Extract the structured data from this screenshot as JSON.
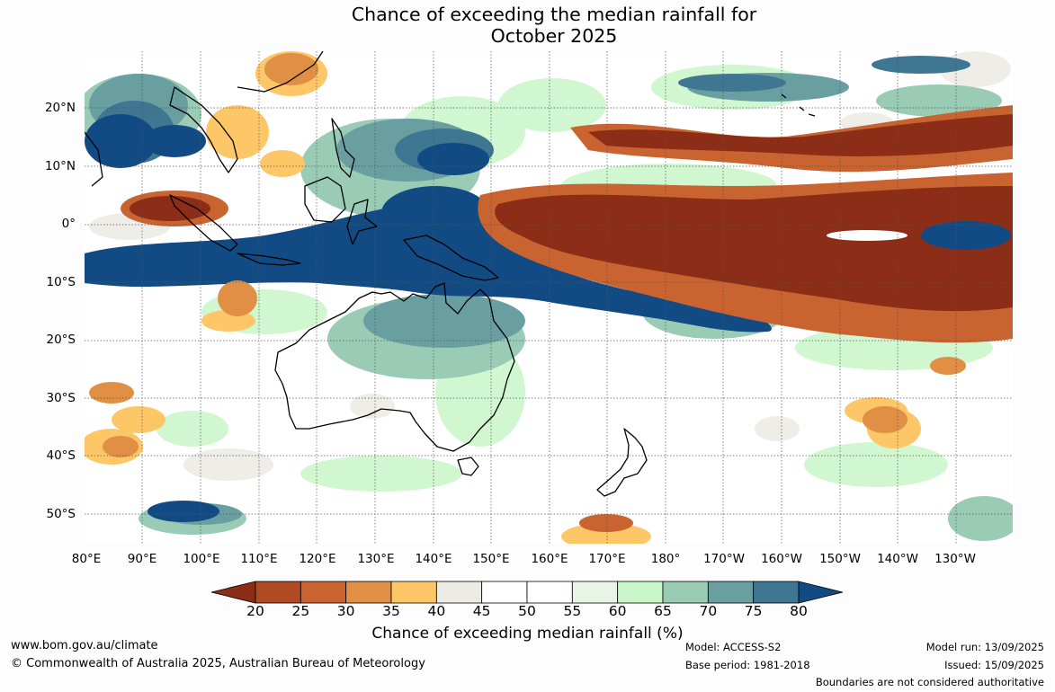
{
  "title_line1": "Chance of exceeding the median rainfall for",
  "title_line2": "October 2025",
  "lat_labels": [
    "20°N",
    "10°N",
    "0°",
    "10°S",
    "20°S",
    "30°S",
    "40°S",
    "50°S"
  ],
  "lon_labels": [
    "80°E",
    "90°E",
    "100°E",
    "110°E",
    "120°E",
    "130°E",
    "140°E",
    "150°E",
    "160°E",
    "170°E",
    "180°",
    "170°W",
    "160°W",
    "150°W",
    "140°W",
    "130°W"
  ],
  "colorbar": {
    "ticks": [
      "20",
      "25",
      "30",
      "35",
      "40",
      "45",
      "50",
      "55",
      "60",
      "65",
      "70",
      "75",
      "80"
    ],
    "colors": [
      "#8c2d18",
      "#b04a22",
      "#c9632f",
      "#e08f45",
      "#fdc768",
      "#ecebe4",
      "#ffffff",
      "#ffffff",
      "#e8f5e6",
      "#c8f6c8",
      "#99cbb5",
      "#6a9fa1",
      "#3f7692",
      "#124a84"
    ],
    "title": "Chance of exceeding median rainfall (%)"
  },
  "footer": {
    "url": "www.bom.gov.au/climate",
    "copyright": "© Commonwealth of Australia 2025, Australian Bureau of Meteorology",
    "model": "Model: ACCESS-S2",
    "base_period": "Base period: 1981-2018",
    "model_run": "Model run: 13/09/2025",
    "issued": "Issued: 15/09/2025",
    "disclaimer": "Boundaries are not considered authoritative"
  }
}
